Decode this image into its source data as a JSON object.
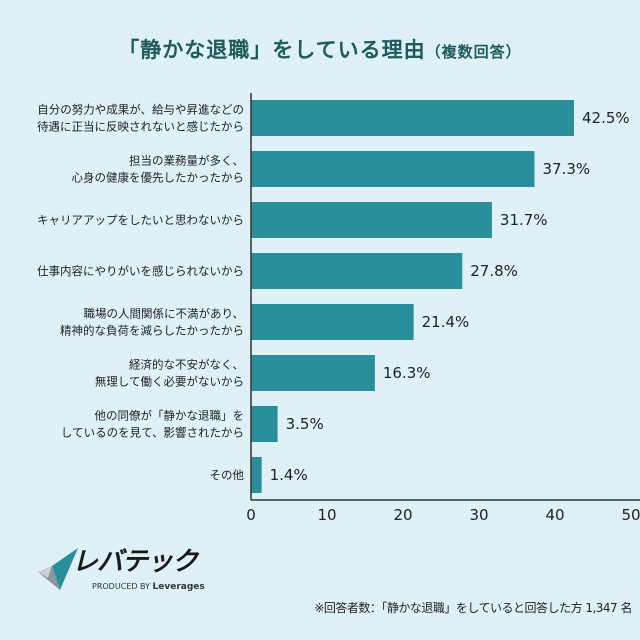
{
  "chart_data": {
    "type": "bar",
    "orientation": "horizontal",
    "title": "「静かな退職」をしている理由",
    "subtitle": "（複数回答）",
    "categories": [
      [
        "自分の努力や成果が、給与や昇進などの",
        "待遇に正当に反映されないと感じたから"
      ],
      [
        "担当の業務量が多く、",
        "心身の健康を優先したかったから"
      ],
      [
        "キャリアアップをしたいと思わないから"
      ],
      [
        "仕事内容にやりがいを感じられないから"
      ],
      [
        "職場の人間関係に不満があり、",
        "精神的な負荷を減らしたかったから"
      ],
      [
        "経済的な不安がなく、",
        "無理して働く必要がないから"
      ],
      [
        "他の同僚が「静かな退職」を",
        "しているのを見て、影響されたから"
      ],
      [
        "その他"
      ]
    ],
    "values": [
      42.5,
      37.3,
      31.7,
      27.8,
      21.4,
      16.3,
      3.5,
      1.4
    ],
    "value_labels": [
      "42.5%",
      "37.3%",
      "31.7%",
      "27.8%",
      "21.4%",
      "16.3%",
      "3.5%",
      "1.4%"
    ],
    "xlim": [
      0,
      50
    ],
    "xticks": [
      "0",
      "10",
      "20",
      "30",
      "40",
      "50"
    ],
    "xunit": "(%)",
    "grid": false,
    "bar_color": "#2a8f9b"
  },
  "footer": {
    "logo_name": "レバテック",
    "logo_sub_prefix": "PRODUCED BY",
    "logo_sub_brand": "Leverages",
    "note": "※回答者数：「静かな退職」をしていると回答した方 1,347 名"
  }
}
